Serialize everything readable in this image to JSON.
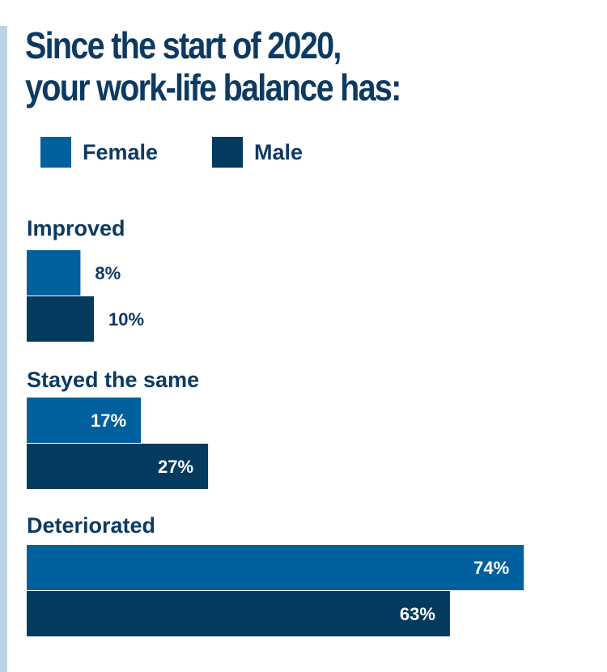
{
  "title_lines": [
    "Since the start of 2020,",
    "your work-life balance has:"
  ],
  "colors": {
    "female": "#00609e",
    "male": "#043a5e",
    "text": "#0c3a62",
    "side_rule": "#bcd3e6",
    "inside_label": "#ffffff"
  },
  "legend": [
    {
      "label": "Female",
      "color": "#00609e"
    },
    {
      "label": "Male",
      "color": "#043a5e"
    }
  ],
  "chart_data": {
    "type": "bar",
    "orientation": "horizontal",
    "title": "Since the start of 2020, your work-life balance has:",
    "categories": [
      "Improved",
      "Stayed the same",
      "Deteriorated"
    ],
    "series": [
      {
        "name": "Female",
        "values": [
          8,
          17,
          74
        ],
        "labels": [
          "8%",
          "17%",
          "74%"
        ],
        "color": "#00609e"
      },
      {
        "name": "Male",
        "values": [
          10,
          27,
          63
        ],
        "labels": [
          "10%",
          "27%",
          "63%"
        ],
        "color": "#043a5e"
      }
    ],
    "unit": "%",
    "grid": false,
    "legend_position": "top-left"
  }
}
